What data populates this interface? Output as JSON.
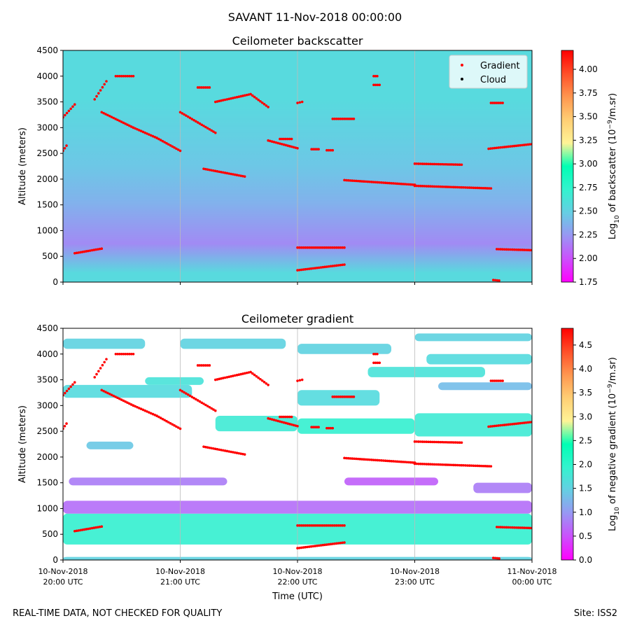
{
  "suptitle": "SAVANT 11-Nov-2018 00:00:00",
  "footer": {
    "left": "REAL-TIME DATA, NOT CHECKED FOR QUALITY",
    "right": "Site: ISS2"
  },
  "colors": {
    "gradient_marker": "#ff0000",
    "cloud_marker": "#000000",
    "backscatter_base": "#2c8ff0",
    "grid": "#bbbbbb"
  },
  "chart_data": [
    {
      "type": "heatmap",
      "title": "Ceilometer backscatter",
      "xlabel": "",
      "ylabel": "Altitude (meters)",
      "ylim": [
        0,
        4500
      ],
      "yticks": [
        "0",
        "500",
        "1000",
        "1500",
        "2000",
        "2500",
        "3000",
        "3500",
        "4000",
        "4500"
      ],
      "xlim_hours": [
        20,
        24
      ],
      "xticks": [],
      "colorbar": {
        "label": "Log10 of backscatter (10^-9/m.sr)",
        "label_base": "Log",
        "label_sub": "10",
        "label_mid": " of backscatter (10",
        "label_sup": "−9",
        "label_end": "/m.sr)",
        "range": [
          1.75,
          4.2
        ],
        "ticks": [
          "1.75",
          "2.00",
          "2.25",
          "2.50",
          "2.75",
          "3.00",
          "3.25",
          "3.50",
          "3.75",
          "4.00"
        ],
        "tick_values": [
          1.75,
          2.0,
          2.25,
          2.5,
          2.75,
          3.0,
          3.25,
          3.5,
          3.75,
          4.0
        ]
      },
      "legend": {
        "placement": "top-right",
        "entries": [
          "Gradient",
          "Cloud"
        ]
      },
      "layers": [
        {
          "from": 0,
          "to": 350,
          "value": 2.55
        },
        {
          "from": 350,
          "to": 1150,
          "value": 2.2
        },
        {
          "from": 1150,
          "to": 1900,
          "value": 2.35
        },
        {
          "from": 1900,
          "to": 2600,
          "value": 2.45
        },
        {
          "from": 2600,
          "to": 4500,
          "value": 2.55
        }
      ]
    },
    {
      "type": "heatmap",
      "title": "Ceilometer gradient",
      "xlabel": "Time (UTC)",
      "ylabel": "Altitude (meters)",
      "ylim": [
        0,
        4500
      ],
      "yticks": [
        "0",
        "500",
        "1000",
        "1500",
        "2000",
        "2500",
        "3000",
        "3500",
        "4000",
        "4500"
      ],
      "xlim_hours": [
        20,
        24
      ],
      "xticks": [
        {
          "hour": 20,
          "line1": "10-Nov-2018",
          "line2": "20:00 UTC"
        },
        {
          "hour": 21,
          "line1": "10-Nov-2018",
          "line2": "21:00 UTC"
        },
        {
          "hour": 22,
          "line1": "10-Nov-2018",
          "line2": "22:00 UTC"
        },
        {
          "hour": 23,
          "line1": "10-Nov-2018",
          "line2": "23:00 UTC"
        },
        {
          "hour": 24,
          "line1": "11-Nov-2018",
          "line2": "00:00 UTC"
        }
      ],
      "colorbar": {
        "label": "Log10 of negative gradient (10^-9/m.sr)",
        "label_base": "Log",
        "label_sub": "10",
        "label_mid": " of negative gradient (10",
        "label_sup": "−9",
        "label_end": "/m.sr)",
        "range": [
          0,
          4.85
        ],
        "ticks": [
          "0.0",
          "0.5",
          "1.0",
          "1.5",
          "2.0",
          "2.5",
          "3.0",
          "3.5",
          "4.0",
          "4.5"
        ],
        "tick_values": [
          0,
          0.5,
          1.0,
          1.5,
          2.0,
          2.5,
          3.0,
          3.5,
          4.0,
          4.5
        ]
      },
      "bands": [
        {
          "x0": 20.0,
          "x1": 24.0,
          "y0": 300,
          "y1": 900,
          "value": 1.9
        },
        {
          "x0": 20.0,
          "x1": 24.0,
          "y0": 900,
          "y1": 1150,
          "value": 0.7
        },
        {
          "x0": 20.0,
          "x1": 24.0,
          "y0": 0,
          "y1": 60,
          "value": 1.5
        },
        {
          "x0": 20.05,
          "x1": 21.4,
          "y0": 1450,
          "y1": 1600,
          "value": 0.8
        },
        {
          "x0": 20.2,
          "x1": 20.6,
          "y0": 2150,
          "y1": 2300,
          "value": 1.4
        },
        {
          "x0": 20.0,
          "x1": 21.1,
          "y0": 3150,
          "y1": 3400,
          "value": 1.6
        },
        {
          "x0": 20.0,
          "x1": 20.7,
          "y0": 4100,
          "y1": 4300,
          "value": 1.5
        },
        {
          "x0": 20.7,
          "x1": 21.2,
          "y0": 3400,
          "y1": 3550,
          "value": 1.7
        },
        {
          "x0": 21.3,
          "x1": 22.0,
          "y0": 2500,
          "y1": 2800,
          "value": 1.8
        },
        {
          "x0": 21.0,
          "x1": 21.9,
          "y0": 4100,
          "y1": 4300,
          "value": 1.5
        },
        {
          "x0": 22.0,
          "x1": 23.0,
          "y0": 2450,
          "y1": 2750,
          "value": 1.9
        },
        {
          "x0": 22.0,
          "x1": 22.7,
          "y0": 3000,
          "y1": 3300,
          "value": 1.6
        },
        {
          "x0": 22.0,
          "x1": 22.8,
          "y0": 4000,
          "y1": 4200,
          "value": 1.5
        },
        {
          "x0": 22.4,
          "x1": 23.2,
          "y0": 1450,
          "y1": 1600,
          "value": 0.6
        },
        {
          "x0": 22.6,
          "x1": 23.6,
          "y0": 3550,
          "y1": 3750,
          "value": 1.7
        },
        {
          "x0": 23.0,
          "x1": 24.0,
          "y0": 2400,
          "y1": 2850,
          "value": 1.8
        },
        {
          "x0": 23.1,
          "x1": 24.0,
          "y0": 3800,
          "y1": 4000,
          "value": 1.6
        },
        {
          "x0": 23.2,
          "x1": 24.0,
          "y0": 3300,
          "y1": 3450,
          "value": 1.3
        },
        {
          "x0": 23.5,
          "x1": 24.0,
          "y0": 1300,
          "y1": 1500,
          "value": 0.8
        },
        {
          "x0": 23.0,
          "x1": 24.0,
          "y0": 4250,
          "y1": 4400,
          "value": 1.5
        }
      ]
    }
  ],
  "gradient_points": [
    {
      "x0": 20.0,
      "x1": 20.03,
      "y0": 2550,
      "y1": 2650
    },
    {
      "x0": 20.0,
      "x1": 20.1,
      "y0": 3200,
      "y1": 3450
    },
    {
      "x0": 20.1,
      "x1": 20.33,
      "y0": 560,
      "y1": 650
    },
    {
      "x0": 20.27,
      "x1": 20.37,
      "y0": 3550,
      "y1": 3900
    },
    {
      "x0": 20.33,
      "x1": 20.6,
      "y0": 3300,
      "y1": 3000
    },
    {
      "x0": 20.6,
      "x1": 20.8,
      "y0": 3000,
      "y1": 2800
    },
    {
      "x0": 20.8,
      "x1": 21.0,
      "y0": 2800,
      "y1": 2550
    },
    {
      "x0": 20.45,
      "x1": 20.6,
      "y0": 4000,
      "y1": 4000
    },
    {
      "x0": 21.0,
      "x1": 21.3,
      "y0": 3300,
      "y1": 2900
    },
    {
      "x0": 21.15,
      "x1": 21.25,
      "y0": 3780,
      "y1": 3780
    },
    {
      "x0": 21.3,
      "x1": 21.6,
      "y0": 3500,
      "y1": 3650
    },
    {
      "x0": 21.6,
      "x1": 21.75,
      "y0": 3650,
      "y1": 3400
    },
    {
      "x0": 21.2,
      "x1": 21.55,
      "y0": 2200,
      "y1": 2050
    },
    {
      "x0": 21.75,
      "x1": 22.0,
      "y0": 2750,
      "y1": 2600
    },
    {
      "x0": 21.85,
      "x1": 21.95,
      "y0": 2780,
      "y1": 2780
    },
    {
      "x0": 22.0,
      "x1": 22.04,
      "y0": 3480,
      "y1": 3500
    },
    {
      "x0": 22.0,
      "x1": 22.4,
      "y0": 670,
      "y1": 670
    },
    {
      "x0": 22.0,
      "x1": 22.4,
      "y0": 230,
      "y1": 340
    },
    {
      "x0": 22.12,
      "x1": 22.18,
      "y0": 2580,
      "y1": 2580
    },
    {
      "x0": 22.25,
      "x1": 22.3,
      "y0": 2560,
      "y1": 2560
    },
    {
      "x0": 22.3,
      "x1": 22.48,
      "y0": 3170,
      "y1": 3170
    },
    {
      "x0": 22.4,
      "x1": 23.0,
      "y0": 1980,
      "y1": 1890
    },
    {
      "x0": 23.0,
      "x1": 23.65,
      "y0": 1870,
      "y1": 1820
    },
    {
      "x0": 23.0,
      "x1": 23.4,
      "y0": 2300,
      "y1": 2280
    },
    {
      "x0": 22.65,
      "x1": 22.7,
      "y0": 3830,
      "y1": 3830
    },
    {
      "x0": 22.65,
      "x1": 22.68,
      "y0": 4000,
      "y1": 4000
    },
    {
      "x0": 23.65,
      "x1": 23.75,
      "y0": 3480,
      "y1": 3480
    },
    {
      "x0": 23.63,
      "x1": 24.0,
      "y0": 2590,
      "y1": 2680
    },
    {
      "x0": 23.7,
      "x1": 24.0,
      "y0": 640,
      "y1": 620
    },
    {
      "x0": 23.67,
      "x1": 23.72,
      "y0": 40,
      "y1": 30
    }
  ]
}
